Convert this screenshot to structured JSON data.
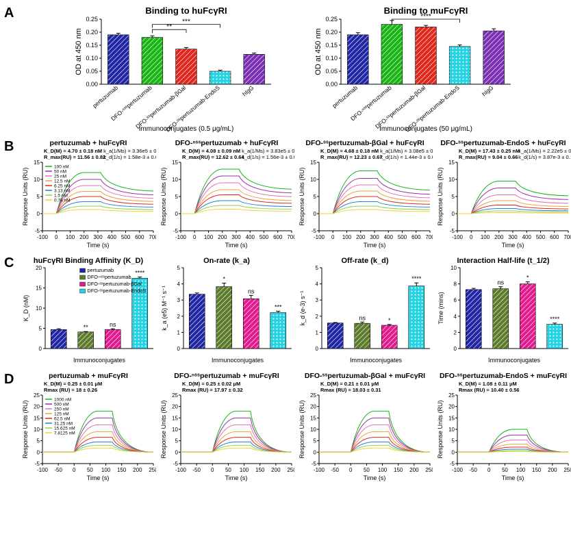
{
  "colors": {
    "blue": "#2026a6",
    "green": "#18b515",
    "red": "#e1261c",
    "cyan": "#26d3e3",
    "purple": "#7b2fb3",
    "magenta": "#e21a8e",
    "olive": "#5c7c2b",
    "spr": {
      "c1": "#18b515",
      "c2": "#9530a5",
      "c3": "#e56fb7",
      "c4": "#e8a23a",
      "c5": "#e1261c",
      "c6": "#1f7fcf",
      "c7": "#91d04e",
      "c8": "#f2d23a",
      "c9": "#c8c8c8"
    }
  },
  "A": {
    "left": {
      "title": "Binding to huFcγRI",
      "ylabel": "OD at 450 nm",
      "xlabel": "Immunoconjugates (0.5 μg/mL)",
      "ylim": [
        0,
        0.25
      ],
      "ytick": 0.05,
      "cats": [
        "pertuzumab",
        "DFO-ⁿˢˢpertuzumab",
        "DFO-ˢˢpertuzumab-βGal",
        "DFO-ˢˢpertuzumab-EndoS",
        "hIgG"
      ],
      "vals": [
        0.19,
        0.18,
        0.135,
        0.05,
        0.115
      ],
      "errs": [
        0.006,
        0.006,
        0.006,
        0.004,
        0.005
      ],
      "colors": [
        "blue",
        "green",
        "red",
        "cyan",
        "purple"
      ],
      "sig": [
        {
          "from": 1,
          "to": 2,
          "y": 0.21,
          "label": "**"
        },
        {
          "from": 1,
          "to": 3,
          "y": 0.23,
          "label": "***"
        }
      ]
    },
    "right": {
      "title": "Binding to muFcγRI",
      "ylabel": "OD at 450 nm",
      "xlabel": "Immunoconjugates (50 μg/mL)",
      "ylim": [
        0,
        0.25
      ],
      "ytick": 0.05,
      "cats": [
        "pertuzumab",
        "DFO-ⁿˢˢpertuzumab",
        "DFO-ˢˢpertuzumab-βGal",
        "DFO-ˢˢpertuzumab-EndoS",
        "hIgG"
      ],
      "vals": [
        0.19,
        0.23,
        0.22,
        0.145,
        0.205
      ],
      "errs": [
        0.008,
        0.015,
        0.006,
        0.006,
        0.008
      ],
      "colors": [
        "blue",
        "green",
        "red",
        "cyan",
        "purple"
      ],
      "sig": [
        {
          "from": 1,
          "to": 3,
          "y": 0.25,
          "label": "****"
        }
      ]
    }
  },
  "B": {
    "titles": [
      "pertuzumab + huFcγRI",
      "DFO-ⁿˢˢpertuzumab + huFcγRI",
      "DFO-ˢˢpertuzumab-βGal + huFcγRI",
      "DFO-ˢˢpertuzumab-EndoS + huFcγRI"
    ],
    "ylabel": "Response Units (RU)",
    "xlabel": "Time (s)",
    "ylim": [
      -5,
      15
    ],
    "yticks": [
      -5,
      0,
      5,
      10,
      15
    ],
    "xlim": [
      -100,
      700
    ],
    "xticks": [
      -100,
      0,
      100,
      200,
      300,
      400,
      500,
      600,
      700
    ],
    "kinetics": [
      {
        "kd": "K_D(M) = 4.70 ± 0.18 nM",
        "rmax": "R_max(RU) = 11.56 ± 0.82",
        "ka": "k_a(1/Ms) = 3.36e5 ± 0.08",
        "koff": "k_d(1/s) = 1.58e-3 ± 0.03"
      },
      {
        "kd": "K_D(M) = 4.08 ± 0.09 nM",
        "rmax": "R_max(RU) = 12.62 ± 0.64",
        "ka": "k_a(1/Ms) = 3.83e5 ± 0.22",
        "koff": "k_d(1/s) = 1.56e-3 ± 0.08"
      },
      {
        "kd": "K_D(M) = 4.68 ± 0.18 nM",
        "rmax": "R_max(RU) = 12.23 ± 0.67",
        "ka": "k_a(1/Ms) = 3.08e5 ± 0.21",
        "koff": "k_d(1/s) = 1.44e-3 ± 0.05"
      },
      {
        "kd": "K_D(M) = 17.43 ± 0.25 nM",
        "rmax": "R_max(RU) = 9.04 ± 0.66",
        "ka": "k_a(1/Ms) = 2.22e5 ± 0.09",
        "koff": "k_d(1/s) = 3.87e-3 ± 0.19"
      }
    ],
    "legend": [
      "100 nM",
      "50 nM",
      "25 nM",
      "12.5 nM",
      "6.25 nM",
      "3.13 nM",
      "1.5 nM",
      "0.78 nM"
    ],
    "legendColors": [
      "c1",
      "c2",
      "c3",
      "c4",
      "c5",
      "c6",
      "c7",
      "c8"
    ],
    "peaks": [
      [
        12,
        10,
        8.2,
        6.5,
        5,
        3.5,
        2.2,
        1.2
      ],
      [
        13,
        11,
        9,
        7,
        5.5,
        3.8,
        2.4,
        1.3
      ],
      [
        12.5,
        10.3,
        8.4,
        6.6,
        5,
        3.5,
        2.2,
        1.2
      ],
      [
        9.5,
        7.5,
        5.5,
        3.8,
        2.5,
        1.5,
        0.8,
        0.3
      ]
    ],
    "decayFrac": 0.55
  },
  "C": {
    "charts": [
      {
        "title": "huFcγRI Binding Affinity (K_D)",
        "ylabel": "K_D (nM)",
        "ylim": [
          0,
          20
        ],
        "ytick": 5,
        "vals": [
          4.7,
          4.1,
          4.7,
          17.4
        ],
        "errs": [
          0.2,
          0.1,
          0.2,
          0.3
        ],
        "labels": [
          "",
          "**",
          "ns",
          "****"
        ]
      },
      {
        "title": "On-rate (k_a)",
        "ylabel": "k_a (e5) M⁻¹ s⁻¹",
        "ylim": [
          0,
          5
        ],
        "ytick": 1,
        "vals": [
          3.36,
          3.83,
          3.08,
          2.22
        ],
        "errs": [
          0.08,
          0.22,
          0.21,
          0.09
        ],
        "labels": [
          "",
          "*",
          "ns",
          "***"
        ]
      },
      {
        "title": "Off-rate (k_d)",
        "ylabel": "k_d (e-3) s⁻¹",
        "ylim": [
          0,
          5
        ],
        "ytick": 1,
        "vals": [
          1.58,
          1.56,
          1.44,
          3.87
        ],
        "errs": [
          0.03,
          0.08,
          0.05,
          0.19
        ],
        "labels": [
          "",
          "ns",
          "*",
          "****"
        ]
      },
      {
        "title": "Interaction Half-life (t_1/2)",
        "ylabel": "Time (mins)",
        "ylim": [
          0,
          10
        ],
        "ytick": 2,
        "vals": [
          7.3,
          7.4,
          8.0,
          3.0
        ],
        "errs": [
          0.15,
          0.25,
          0.25,
          0.15
        ],
        "labels": [
          "",
          "ns",
          "*",
          "****"
        ]
      }
    ],
    "legend": [
      "pertuzumab",
      "DFO-ⁿˢˢpertuzumab",
      "DFO-ˢˢpertuzumab-βGal",
      "DFO-ˢˢpertuzumab-EndoS"
    ],
    "legendColors": [
      "blue",
      "olive",
      "magenta",
      "cyan"
    ],
    "xlabel": "Immunoconjugates"
  },
  "D": {
    "titles": [
      "pertuzumab + muFcγRI",
      "DFO-ⁿˢˢpertuzumab + muFcγRI",
      "DFO-ˢˢpertuzumab-βGal + muFcγRI",
      "DFO-ˢˢpertuzumab-EndoS + muFcγRI"
    ],
    "ylabel": "Response Units (RU)",
    "xlabel": "Time (s)",
    "ylim": [
      -5,
      25
    ],
    "yticks": [
      -5,
      0,
      5,
      10,
      15,
      20,
      25
    ],
    "xlim": [
      -100,
      250
    ],
    "xticks": [
      -100,
      -50,
      0,
      50,
      100,
      150,
      200,
      250
    ],
    "kinetics": [
      {
        "kd": "K_D(M) = 0.25 ± 0.01 μM",
        "rmax": "Rmax (RU) = 18 ± 0.26"
      },
      {
        "kd": "K_D(M) = 0.25 ± 0.02 μM",
        "rmax": "Rmax (RU) = 17.97 ± 0.32"
      },
      {
        "kd": "K_D(M) = 0.21 ± 0.01 μM",
        "rmax": "Rmax (RU) = 18.03 ± 0.31"
      },
      {
        "kd": "K_D(M) = 1.08 ± 0.11 μM",
        "rmax": "Rmax (RU) = 10.40 ± 0.56"
      }
    ],
    "legend": [
      "1000 nM",
      "500 nM",
      "250 nM",
      "125 nM",
      "62.5 nM",
      "31.25 nM",
      "15.625 nM",
      "7.8125 nM"
    ],
    "legendColors": [
      "c1",
      "c2",
      "c3",
      "c4",
      "c5",
      "c6",
      "c7",
      "c8"
    ],
    "peaks": [
      [
        18,
        15,
        12,
        9,
        6.5,
        4.5,
        3,
        1.8
      ],
      [
        18,
        15,
        12,
        9,
        6.5,
        4.5,
        3,
        1.8
      ],
      [
        18,
        15,
        12,
        9,
        6.5,
        4.5,
        3,
        1.8
      ],
      [
        10,
        7.5,
        5.3,
        3.5,
        2.2,
        1.3,
        0.7,
        0.3
      ]
    ]
  }
}
